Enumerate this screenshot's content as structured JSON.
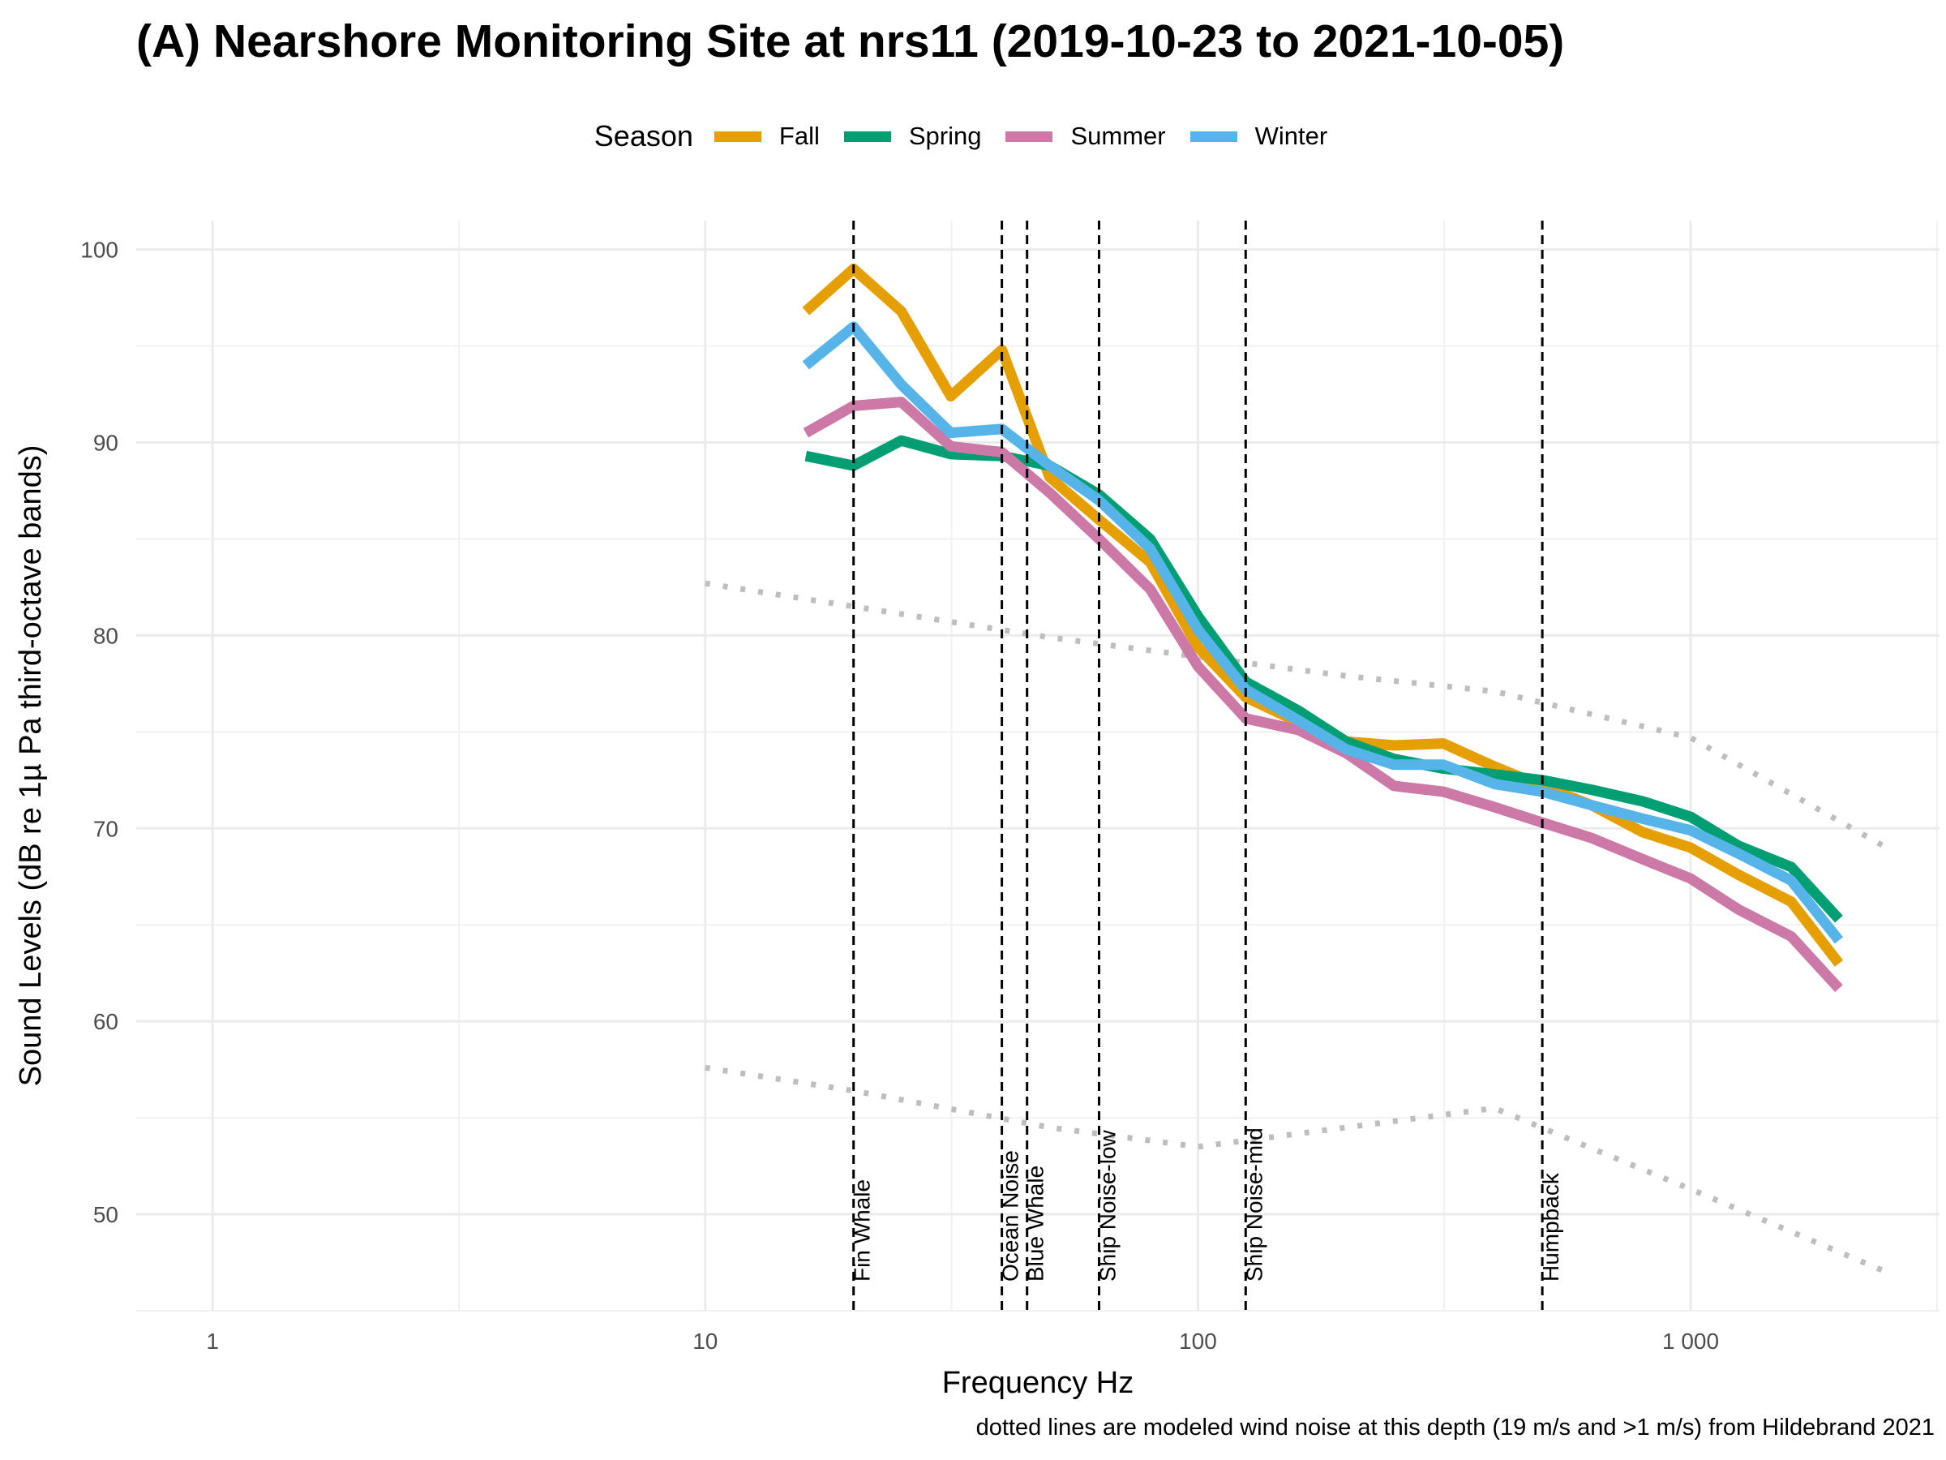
{
  "chart_data": {
    "type": "line",
    "title": "(A) Nearshore Monitoring Site at nrs11 (2019-10-23 to 2021-10-05)",
    "xlabel": "Frequency Hz",
    "ylabel": "Sound Levels (dB re 1µ Pa third-octave bands)",
    "x_scale": "log",
    "xlim": [
      0.7,
      3200
    ],
    "ylim": [
      45,
      101.5
    ],
    "x_ticks": [
      1,
      10,
      100,
      1000
    ],
    "x_tick_labels": [
      "1",
      "10",
      "100",
      "1 000"
    ],
    "y_ticks": [
      50,
      60,
      70,
      80,
      90,
      100
    ],
    "y_tick_labels": [
      "50",
      "60",
      "70",
      "80",
      "90",
      "100"
    ],
    "grid": true,
    "legend": {
      "title": "Season",
      "position": "top"
    },
    "x": [
      16,
      20,
      25,
      31.5,
      40,
      50,
      63,
      80,
      100,
      125,
      160,
      200,
      250,
      315,
      400,
      500,
      630,
      800,
      1000,
      1250,
      1600,
      2000
    ],
    "series": [
      {
        "name": "Fall",
        "color": "#E69F00",
        "values": [
          96.8,
          99.0,
          96.8,
          92.4,
          94.8,
          88.2,
          86.0,
          83.8,
          79.4,
          76.8,
          75.5,
          74.5,
          74.3,
          74.4,
          73.2,
          72.2,
          71.2,
          69.8,
          69.0,
          67.6,
          66.2,
          63.0
        ]
      },
      {
        "name": "Spring",
        "color": "#009E73",
        "values": [
          89.3,
          88.8,
          90.1,
          89.4,
          89.3,
          88.8,
          87.3,
          85.0,
          81.0,
          77.6,
          76.1,
          74.5,
          73.6,
          73.1,
          72.8,
          72.5,
          72.0,
          71.4,
          70.6,
          69.1,
          68.0,
          65.3
        ]
      },
      {
        "name": "Summer",
        "color": "#CC79A7",
        "values": [
          90.5,
          91.9,
          92.1,
          89.8,
          89.5,
          87.4,
          85.0,
          82.4,
          78.4,
          75.7,
          75.1,
          73.9,
          72.2,
          71.9,
          71.1,
          70.3,
          69.5,
          68.4,
          67.4,
          65.8,
          64.4,
          61.7
        ]
      },
      {
        "name": "Winter",
        "color": "#56B4E9",
        "values": [
          94.0,
          96.0,
          93.0,
          90.5,
          90.7,
          88.8,
          87.0,
          84.5,
          80.3,
          77.2,
          75.6,
          74.1,
          73.3,
          73.3,
          72.3,
          71.9,
          71.2,
          70.5,
          69.9,
          68.7,
          67.3,
          64.2
        ]
      }
    ],
    "wind_noise_models": [
      {
        "label": "19 m/s",
        "color": "#bebebe",
        "x": [
          10,
          20,
          50,
          100,
          200,
          400,
          1000,
          2500
        ],
        "values": [
          82.7,
          81.5,
          79.9,
          78.9,
          77.9,
          77.1,
          74.7,
          69.0
        ]
      },
      {
        "label": ">1 m/s",
        "color": "#bebebe",
        "x": [
          10,
          20,
          50,
          100,
          200,
          400,
          1000,
          2500
        ],
        "values": [
          57.6,
          56.4,
          54.5,
          53.5,
          54.5,
          55.5,
          51.3,
          47.0
        ]
      }
    ],
    "bands": [
      {
        "label": "Fin Whale",
        "x": 20
      },
      {
        "label": "Ocean Noise",
        "x": 40
      },
      {
        "label": "Blue Whale",
        "x": 45
      },
      {
        "label": "Ship Noise-low",
        "x": 63
      },
      {
        "label": "Ship Noise-mid",
        "x": 125
      },
      {
        "label": "Humpback",
        "x": 500
      }
    ],
    "caption": "dotted lines are modeled wind noise at this depth (19 m/s and >1 m/s) from Hildebrand 2021"
  }
}
